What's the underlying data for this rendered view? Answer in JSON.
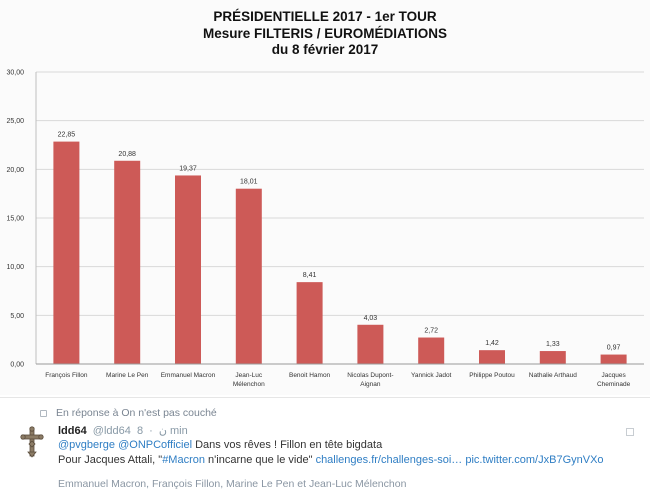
{
  "chart_data": {
    "type": "bar",
    "title_lines": [
      "PRÉSIDENTIELLE 2017 - 1er TOUR",
      "Mesure FILTERIS / EUROMÉDIATIONS",
      "du 8 février 2017"
    ],
    "categories": [
      [
        "François Fillon"
      ],
      [
        "Marine Le Pen"
      ],
      [
        "Emmanuel Macron"
      ],
      [
        "Jean-Luc",
        "Mélenchon"
      ],
      [
        "Benoit Hamon"
      ],
      [
        "Nicolas Dupont-",
        "Aignan"
      ],
      [
        "Yannick Jadot"
      ],
      [
        "Philippe Poutou"
      ],
      [
        "Nathalie Arthaud"
      ],
      [
        "Jacques",
        "Cheminade"
      ]
    ],
    "values": [
      22.85,
      20.88,
      19.37,
      18.01,
      8.41,
      4.03,
      2.72,
      1.42,
      1.33,
      0.97
    ],
    "value_labels": [
      "22,85",
      "20,88",
      "19,37",
      "18,01",
      "8,41",
      "4,03",
      "2,72",
      "1,42",
      "1,33",
      "0,97"
    ],
    "ylim": [
      0,
      30
    ],
    "yticks": [
      "0,00",
      "5,00",
      "10,00",
      "15,00",
      "20,00",
      "25,00",
      "30,00"
    ],
    "ytick_values": [
      0,
      5,
      10,
      15,
      20,
      25,
      30
    ],
    "grid": true,
    "bar_color": "#cd5a57",
    "xlabel": "",
    "ylabel": ""
  },
  "tweet": {
    "reply_to": "En réponse à On n'est pas couché",
    "author_name": "ldd64",
    "author_handle": "@ldd64",
    "author_glyph": "ن",
    "separator": "·",
    "time": "8 min",
    "line1_mentions": "@pvgberge @ONPCofficiel",
    "line1_text": " Dans vos rêves ! Fillon en tête bigdata",
    "line2_text": "Pour Jacques Attali, \"",
    "line2_hashtag": "#Macron",
    "line2_text2": " n'incarne que le vide\" ",
    "line2_link1": "challenges.fr/challenges-soi…",
    "line2_link2": " pic.twitter.com/JxB7GynVXo",
    "mentioned_people": "Emmanuel Macron, François Fillon, Marine Le Pen et Jean-Luc Mélenchon"
  }
}
